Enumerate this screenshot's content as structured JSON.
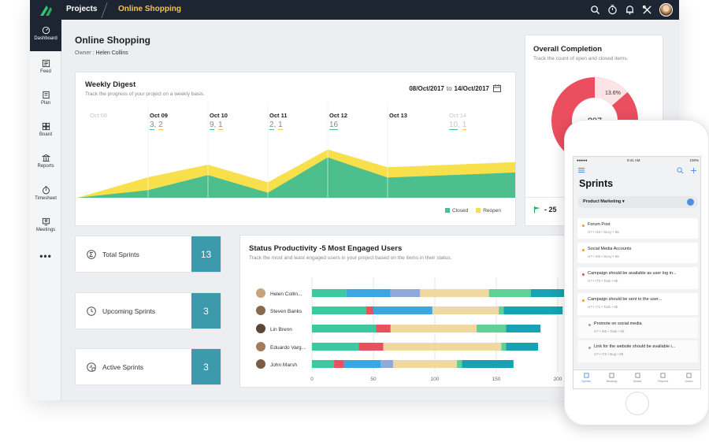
{
  "topbar": {
    "projects": "Projects",
    "current": "Online Shopping"
  },
  "sidebar": {
    "items": [
      {
        "label": "Dashboard",
        "icon": "gauge-icon"
      },
      {
        "label": "Feed",
        "icon": "feed-icon"
      },
      {
        "label": "Plan",
        "icon": "plan-icon"
      },
      {
        "label": "Board",
        "icon": "board-icon"
      },
      {
        "label": "Reports",
        "icon": "reports-icon"
      },
      {
        "label": "Timesheet",
        "icon": "clock-icon"
      },
      {
        "label": "Meetings",
        "icon": "meetings-icon"
      }
    ],
    "more": "•••"
  },
  "page": {
    "title": "Online Shopping",
    "owner_label": "Owner :",
    "owner": "Helen Collins"
  },
  "weekly": {
    "title": "Weekly Digest",
    "subtitle": "Track the progress of your project on a weekly basis.",
    "date_from": "08/Oct/2017",
    "to": "to",
    "date_to": "14/Oct/2017",
    "days": [
      {
        "label": "Oct 08",
        "a": "",
        "b": "",
        "dim": true
      },
      {
        "label": "Oct 09",
        "a": "3",
        "b": "2",
        "dim": false
      },
      {
        "label": "Oct 10",
        "a": "9",
        "b": "1",
        "dim": false
      },
      {
        "label": "Oct 11",
        "a": "2",
        "b": "1",
        "dim": false
      },
      {
        "label": "Oct 12",
        "a": "16",
        "b": "",
        "dim": false
      },
      {
        "label": "Oct 13",
        "a": "",
        "b": "",
        "dim": false
      },
      {
        "label": "Oct 14",
        "a": "10",
        "b": "1",
        "dim": true
      }
    ],
    "legend": [
      {
        "label": "Closed",
        "color": "#4cbf8c"
      },
      {
        "label": "Reopen",
        "color": "#f7e04b"
      }
    ]
  },
  "chart_data": [
    {
      "type": "area",
      "title": "Weekly Digest",
      "x": [
        "Oct 08",
        "Oct 09",
        "Oct 10",
        "Oct 11",
        "Oct 12",
        "Oct 13",
        "Oct 14"
      ],
      "series": [
        {
          "name": "Closed",
          "values": [
            0,
            3,
            9,
            2,
            16,
            8,
            10
          ]
        },
        {
          "name": "Reopen",
          "values": [
            0,
            2,
            1,
            1,
            0,
            1,
            1
          ]
        }
      ]
    },
    {
      "type": "bar",
      "title": "Status Productivity -5 Most Engaged Users",
      "categories": [
        "Helen Collin...",
        "Steven Banks",
        "Lin Brenn",
        "Eduardo Varg...",
        "John Marsh"
      ],
      "xlim": [
        0,
        200
      ],
      "ticks": [
        "0",
        "50",
        "100",
        "150",
        "200"
      ],
      "series": [
        {
          "name": "",
          "color": "#3cc9a0",
          "values": [
            28,
            44,
            52,
            38,
            18
          ]
        },
        {
          "name": "",
          "color": "#e8525e",
          "values": [
            0,
            6,
            12,
            20,
            8
          ]
        },
        {
          "name": "",
          "color": "#3aa7e0",
          "values": [
            36,
            48,
            0,
            0,
            30
          ]
        },
        {
          "name": "",
          "color": "#8fa9d8",
          "values": [
            24,
            0,
            0,
            0,
            10
          ]
        },
        {
          "name": "",
          "color": "#efd9a0",
          "values": [
            56,
            54,
            70,
            96,
            52
          ]
        },
        {
          "name": "",
          "color": "#5fd197",
          "values": [
            34,
            4,
            24,
            4,
            4
          ]
        },
        {
          "name": "",
          "color": "#17a3b2",
          "values": [
            40,
            48,
            28,
            26,
            42
          ]
        }
      ]
    }
  ],
  "overall": {
    "title": "Overall Completion",
    "subtitle": "Track the count of open and closed items.",
    "center": "807",
    "pct": "13.6%",
    "donut_fraction": 0.136,
    "flag": "- 25"
  },
  "sprints": [
    {
      "label": "Total Sprints",
      "count": "13",
      "icon": "sigma-icon"
    },
    {
      "label": "Upcoming Sprints",
      "count": "3",
      "icon": "clock-icon"
    },
    {
      "label": "Active Sprints",
      "count": "3",
      "icon": "active-icon"
    }
  ],
  "status": {
    "title": "Status Productivity -5 Most Engaged Users",
    "subtitle": "Track the most and least engaged users in your project based on the items in their status."
  },
  "phone": {
    "time": "9:41 AM",
    "signal": "●●●●● ",
    "battery": "100%",
    "title": "Sprints",
    "select": "Product Marketing",
    "items": [
      {
        "title": "Forum Post",
        "meta": "H7 • I49 • Story • 85",
        "color": "#f39c12",
        "sub": false
      },
      {
        "title": "Social Media Accounts",
        "meta": "H7 • I65 • Story • 85",
        "color": "#f39c12",
        "sub": false
      },
      {
        "title": "Campaign should be available as user log in...",
        "meta": "H7 • I70 • Task • 85",
        "color": "#e74c3c",
        "sub": false
      },
      {
        "title": "Campaign should be sent to the user...",
        "meta": "H7 • I71 • Task • 85",
        "color": "#f39c12",
        "sub": false
      },
      {
        "title": "Promote on social media",
        "meta": "H7 • I66 • Task • 85",
        "color": "#9aa3ad",
        "sub": true
      },
      {
        "title": "Link for the website should be available i...",
        "meta": "H7 • I75 • Bug • 85",
        "color": "#9aa3ad",
        "sub": true
      }
    ],
    "tabs": [
      "Sprints",
      "Backlog",
      "Board",
      "Reports",
      "Users"
    ]
  }
}
